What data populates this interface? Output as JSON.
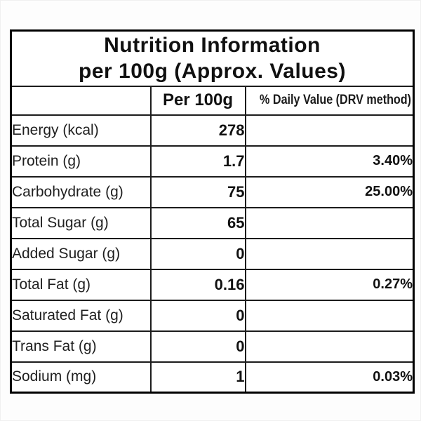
{
  "table": {
    "title_line1": "Nutrition Information",
    "title_line2": "per 100g (Approx. Values)",
    "columns": {
      "nutrient_header": "",
      "per_100g_header": "Per 100g",
      "drv_header": "% Daily Value (DRV method)"
    },
    "rows": [
      {
        "label": "Energy (kcal)",
        "per_100g": "278",
        "drv": ""
      },
      {
        "label": "Protein (g)",
        "per_100g": "1.7",
        "drv": "3.40%"
      },
      {
        "label": "Carbohydrate (g)",
        "per_100g": "75",
        "drv": "25.00%"
      },
      {
        "label": "Total Sugar (g)",
        "per_100g": "65",
        "drv": ""
      },
      {
        "label": "Added Sugar (g)",
        "per_100g": "0",
        "drv": ""
      },
      {
        "label": "Total Fat (g)",
        "per_100g": "0.16",
        "drv": "0.27%"
      },
      {
        "label": "Saturated Fat (g)",
        "per_100g": "0",
        "drv": ""
      },
      {
        "label": "Trans Fat (g)",
        "per_100g": "0",
        "drv": ""
      },
      {
        "label": "Sodium (mg)",
        "per_100g": "1",
        "drv": "0.03%"
      }
    ],
    "colors": {
      "border": "#000000",
      "text": "#161616",
      "background": "#ffffff"
    }
  }
}
